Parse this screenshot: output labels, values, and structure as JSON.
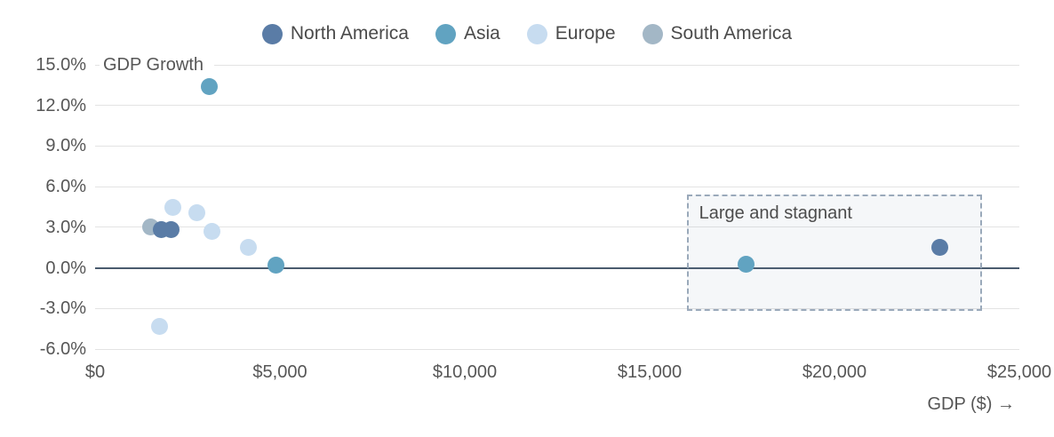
{
  "chart_data": {
    "type": "scatter",
    "xlabel": "GDP ($) →",
    "ylabel": "GDP Growth",
    "xlim": [
      0,
      25000
    ],
    "ylim": [
      -6,
      15
    ],
    "grid": "horizontal",
    "legend_position": "top",
    "zero_line": true,
    "x_ticks": [
      {
        "value": 0,
        "label": "$0"
      },
      {
        "value": 5000,
        "label": "$5,000"
      },
      {
        "value": 10000,
        "label": "$10,000"
      },
      {
        "value": 15000,
        "label": "$15,000"
      },
      {
        "value": 20000,
        "label": "$20,000"
      },
      {
        "value": 25000,
        "label": "$25,000"
      }
    ],
    "y_ticks": [
      {
        "value": 15,
        "label": "15.0%"
      },
      {
        "value": 12,
        "label": "12.0%"
      },
      {
        "value": 9,
        "label": "9.0%"
      },
      {
        "value": 6,
        "label": "6.0%"
      },
      {
        "value": 3,
        "label": "3.0%"
      },
      {
        "value": 0,
        "label": "0.0%"
      },
      {
        "value": -3,
        "label": "-3.0%"
      },
      {
        "value": -6,
        "label": "-6.0%"
      }
    ],
    "series": [
      {
        "name": "North America",
        "color": "#5a7ca6",
        "points": [
          [
            1800,
            2.8
          ],
          [
            2050,
            2.85
          ],
          [
            22850,
            1.5
          ]
        ]
      },
      {
        "name": "Asia",
        "color": "#61a3c1",
        "points": [
          [
            3100,
            13.4
          ],
          [
            4900,
            0.2
          ],
          [
            17600,
            0.3
          ]
        ]
      },
      {
        "name": "Europe",
        "color": "#c7dcf0",
        "points": [
          [
            2100,
            4.5
          ],
          [
            2750,
            4.1
          ],
          [
            3150,
            2.7
          ],
          [
            4150,
            1.5
          ],
          [
            1750,
            -4.3
          ]
        ]
      },
      {
        "name": "South America",
        "color": "#a3b7c6",
        "points": [
          [
            1500,
            3.05
          ]
        ]
      }
    ],
    "annotation": {
      "label": "Large and stagnant",
      "x0": 16000,
      "x1": 24000,
      "y0": -3.2,
      "y1": 5.4
    }
  }
}
